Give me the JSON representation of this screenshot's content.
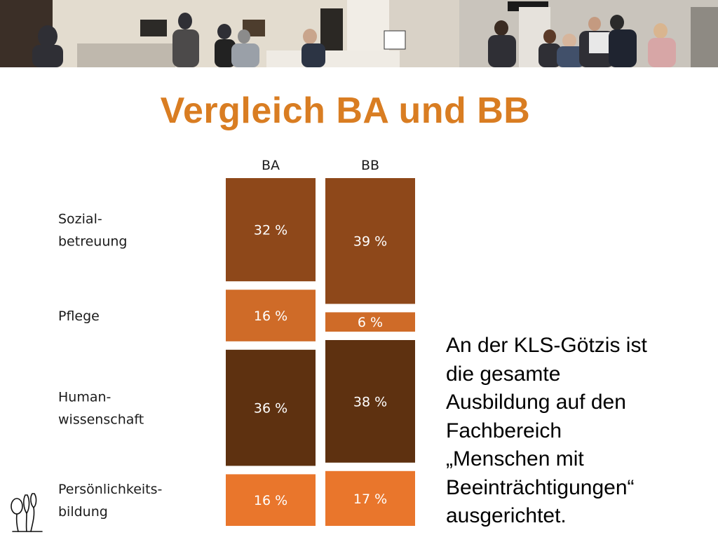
{
  "slide": {
    "title": "Vergleich BA und BB",
    "side_text_lines": [
      "An der KLS-Götzis ist",
      "die gesamte",
      "Ausbildung auf den",
      "Fachbereich",
      "„Menschen mit",
      "Beeinträchtigungen“",
      "ausgerichtet."
    ]
  },
  "chart_data": {
    "type": "bar",
    "stacked": true,
    "orientation": "vertical",
    "columns": [
      "BA",
      "BB"
    ],
    "categories": [
      [
        "Sozial-",
        "betreuung"
      ],
      [
        "Pflege"
      ],
      [
        "Human-",
        "wissenschaft"
      ],
      [
        "Persönlichkeits-",
        "bildung"
      ]
    ],
    "series": [
      {
        "name": "BA",
        "values": [
          32,
          16,
          36,
          16
        ],
        "labels": [
          "32 %",
          "16 %",
          "36 %",
          "16 %"
        ]
      },
      {
        "name": "BB",
        "values": [
          39,
          6,
          38,
          17
        ],
        "labels": [
          "39 %",
          "6 %",
          "38 %",
          "17 %"
        ]
      }
    ],
    "colors": [
      "#8e481a",
      "#cf6b28",
      "#5e3110",
      "#e9762c"
    ],
    "unit": "%"
  }
}
